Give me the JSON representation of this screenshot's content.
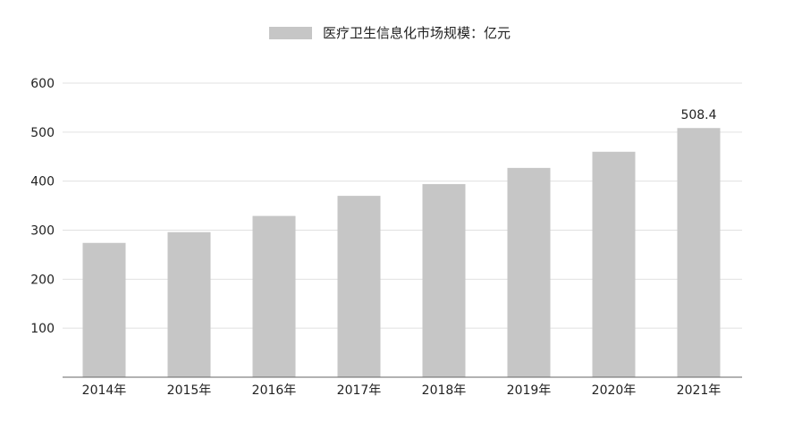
{
  "chart_data": {
    "type": "bar",
    "legend": {
      "label": "医疗卫生信息化市场规模：亿元",
      "placement": "top-center",
      "swatch_color": "#c6c6c6"
    },
    "categories": [
      "2014年",
      "2015年",
      "2016年",
      "2017年",
      "2018年",
      "2019年",
      "2020年",
      "2021年"
    ],
    "series": [
      {
        "name": "医疗卫生信息化市场规模：亿元",
        "values": [
          274,
          296,
          329,
          370,
          394,
          427,
          460,
          508.4
        ],
        "color": "#c6c6c6"
      }
    ],
    "data_labels": [
      {
        "category": "2021年",
        "text": "508.4"
      }
    ],
    "ylim": [
      0,
      600
    ],
    "yticks": [
      "100",
      "200",
      "300",
      "400",
      "500",
      "600"
    ],
    "grid": true,
    "grid_color": "#e1e1e1",
    "axis_color": "#666666"
  }
}
